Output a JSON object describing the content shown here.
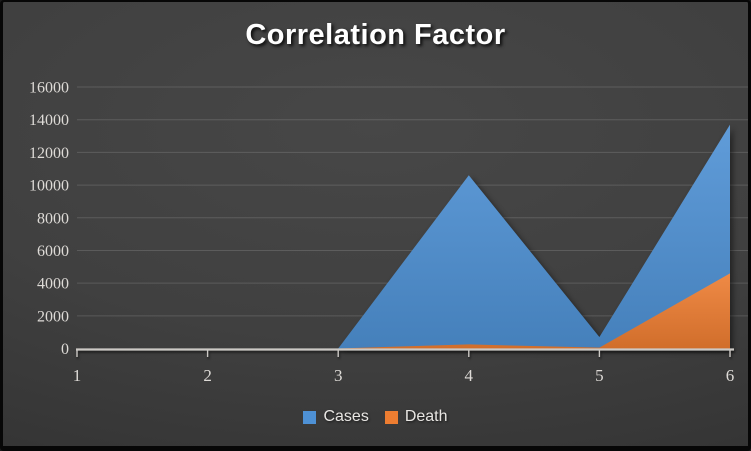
{
  "chart_data": {
    "type": "area",
    "title": "Correlation Factor",
    "categories": [
      "1",
      "2",
      "3",
      "4",
      "5",
      "6"
    ],
    "series": [
      {
        "name": "Cases",
        "color": "#4E91D5",
        "values": [
          0,
          0,
          0,
          10600,
          700,
          13700
        ]
      },
      {
        "name": "Death",
        "color": "#ED7D31",
        "values": [
          0,
          0,
          0,
          250,
          50,
          4600
        ]
      }
    ],
    "xlabel": "",
    "ylabel": "",
    "ylim": [
      0,
      16000
    ],
    "yticks": [
      0,
      2000,
      4000,
      6000,
      8000,
      10000,
      12000,
      14000,
      16000
    ],
    "grid": true,
    "legend_position": "bottom",
    "overlap_mode": "overlapping"
  },
  "theme": {
    "background": "#3c3c3c",
    "title_color": "#ffffff",
    "axis_color": "#ccc9c5",
    "tick_label_color": "#dedbd7"
  }
}
